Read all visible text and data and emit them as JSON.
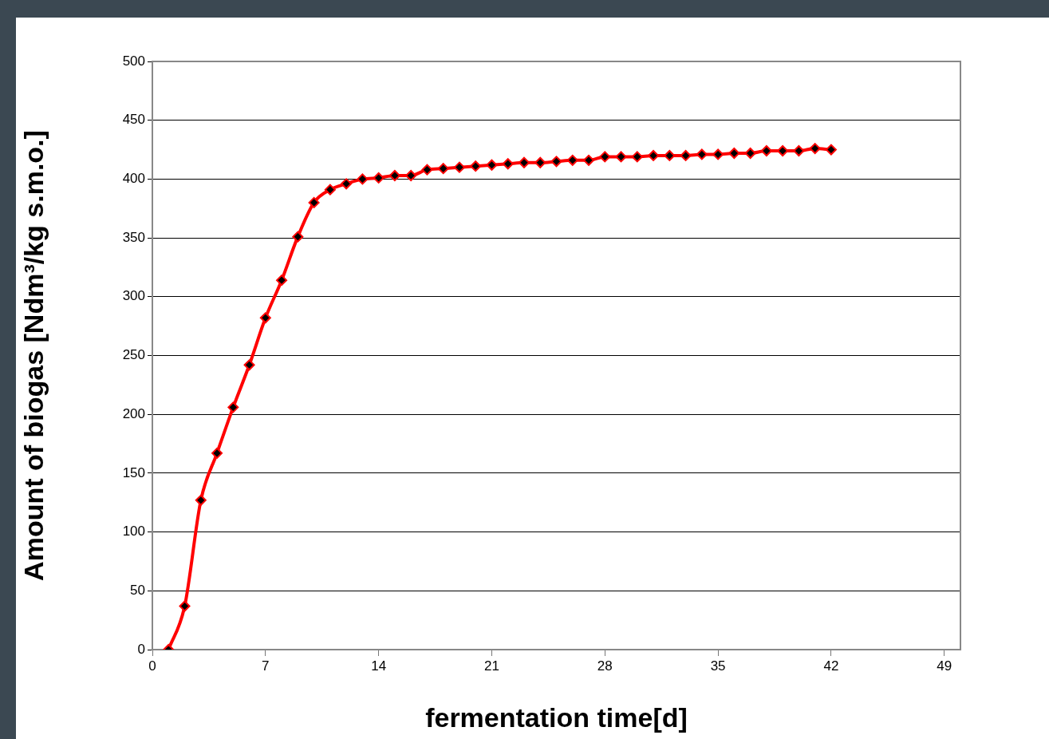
{
  "chart_data": {
    "type": "line",
    "xlabel": "fermentation time[d]",
    "ylabel": "Amount of biogas [Ndm³/kg s.m.o.]",
    "x": [
      1,
      2,
      3,
      4,
      5,
      6,
      7,
      8,
      9,
      10,
      11,
      12,
      13,
      14,
      15,
      16,
      17,
      18,
      19,
      20,
      21,
      22,
      23,
      24,
      25,
      26,
      27,
      28,
      29,
      30,
      31,
      32,
      33,
      34,
      35,
      36,
      37,
      38,
      39,
      40,
      41,
      42
    ],
    "series": [
      {
        "color": "#ff0000",
        "values": [
          0,
          37,
          127,
          167,
          206,
          242,
          282,
          314,
          351,
          380,
          391,
          396,
          400,
          401,
          403,
          403,
          408,
          409,
          410,
          411,
          412,
          413,
          414,
          414,
          415,
          416,
          416,
          419,
          419,
          419,
          420,
          420,
          420,
          421,
          421,
          422,
          422,
          424,
          424,
          424,
          426,
          425
        ]
      }
    ],
    "xlim": [
      0,
      50
    ],
    "xticks": [
      0,
      7,
      14,
      21,
      28,
      35,
      42,
      49
    ],
    "ylim": [
      0,
      500
    ],
    "yticks": [
      0,
      50,
      100,
      150,
      200,
      250,
      300,
      350,
      400,
      450,
      500
    ],
    "grid": "y",
    "marker": "diamond",
    "line_style": "solid",
    "legend": false
  }
}
